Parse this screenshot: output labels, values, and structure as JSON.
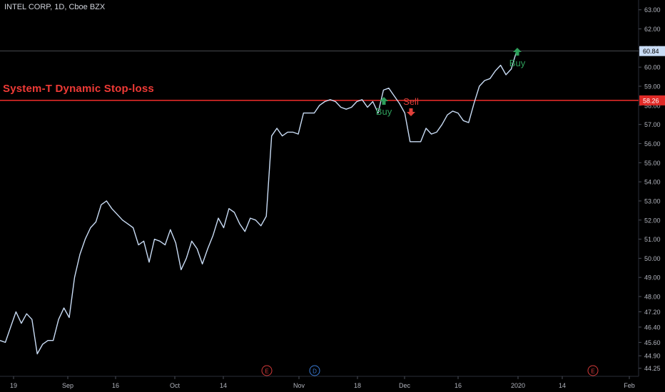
{
  "header": {
    "title": "INTEL CORP, 1D, Cboe BZX"
  },
  "stop_label": "System-T Dynamic Stop-loss",
  "colors": {
    "background": "#000000",
    "price_line": "#c9dcf5",
    "stop_line": "#e02a27",
    "buy": "#2e9e5b",
    "sell": "#e0403a",
    "last_price_badge": "#c9dcf5",
    "stop_badge": "#e02a27",
    "axis_text": "#b2b5be",
    "event_earnings": "#d53a3a",
    "event_dividend": "#3a7bd5"
  },
  "chart_data": {
    "type": "line",
    "title": "INTEL CORP, 1D, Cboe BZX",
    "xlabel": "",
    "ylabel": "",
    "ylim": [
      43.9,
      63.4
    ],
    "grid": false,
    "x_tick_labels": [
      "19",
      "Sep",
      "16",
      "Oct",
      "14",
      "Nov",
      "18",
      "Dec",
      "16",
      "2020",
      "14",
      "Feb"
    ],
    "y_tick_labels": [
      "63.00",
      "62.00",
      "61.00",
      "60.00",
      "59.00",
      "58.00",
      "57.00",
      "56.00",
      "55.00",
      "54.00",
      "53.00",
      "52.00",
      "51.00",
      "50.00",
      "49.00",
      "48.00",
      "47.20",
      "46.40",
      "45.60",
      "44.90",
      "44.25"
    ],
    "series": [
      {
        "values": [
          45.7,
          45.6,
          46.4,
          47.2,
          46.6,
          47.1,
          46.8,
          45.0,
          45.5,
          45.7,
          45.7,
          46.8,
          47.4,
          46.9,
          49.0,
          50.2,
          51.0,
          51.6,
          51.9,
          52.8,
          53.0,
          52.6,
          52.3,
          52.0,
          51.8,
          51.6,
          50.7,
          50.9,
          49.8,
          51.0,
          50.9,
          50.7,
          51.5,
          50.8,
          49.4,
          50.0,
          50.9,
          50.5,
          49.7,
          50.5,
          51.2,
          52.1,
          51.6,
          52.6,
          52.4,
          51.8,
          51.4,
          52.1,
          52.0,
          51.7,
          52.2,
          56.4,
          56.8,
          56.4,
          56.6,
          56.6,
          56.5,
          57.6,
          57.6,
          57.6,
          58.0,
          58.2,
          58.3,
          58.2,
          57.9,
          57.8,
          57.9,
          58.2,
          58.3,
          57.9,
          58.2,
          57.6,
          58.8,
          58.9,
          58.5,
          58.1,
          57.6,
          56.1,
          56.1,
          56.1,
          56.8,
          56.5,
          56.6,
          57.0,
          57.5,
          57.7,
          57.6,
          57.2,
          57.1,
          58.1,
          59.0,
          59.3,
          59.4,
          59.8,
          60.1,
          59.6,
          59.9,
          60.84
        ]
      }
    ],
    "last_price": 60.84,
    "last_price_label": "60.84",
    "stop_level": 58.26,
    "stop_level_label": "58.26",
    "signals": [
      {
        "type": "buy",
        "label": "Buy",
        "index": 71
      },
      {
        "type": "sell",
        "label": "Sell",
        "index": 76
      },
      {
        "type": "buy",
        "label": "Buy",
        "index": 97
      }
    ],
    "events": [
      {
        "label": "E",
        "kind": "earnings"
      },
      {
        "label": "D",
        "kind": "dividend"
      },
      {
        "label": "E",
        "kind": "earnings"
      }
    ]
  }
}
